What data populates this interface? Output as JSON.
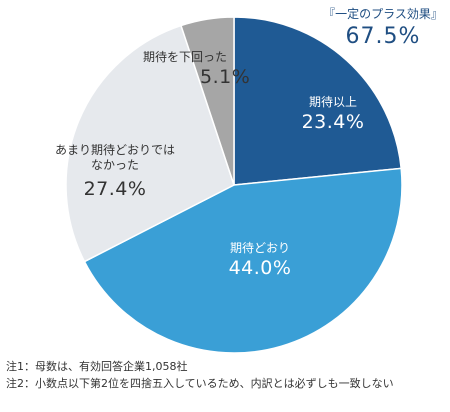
{
  "chart_data": {
    "type": "pie",
    "slices": [
      {
        "label": "期待以上",
        "value": 23.4,
        "value_label": "23.4%",
        "color": "#1f5a94"
      },
      {
        "label": "期待どおり",
        "value": 44.0,
        "value_label": "44.0%",
        "color": "#3a9fd6"
      },
      {
        "label": "あまり期待どおりではなかった",
        "value": 27.4,
        "value_label": "27.4%",
        "color": "#e6e9ed"
      },
      {
        "label": "期待を下回った",
        "value": 5.1,
        "value_label": "5.1%",
        "color": "#a6a6a6"
      }
    ],
    "annotations": {
      "summary_label": "『一定のプラス効果』",
      "summary_value": "67.5%"
    }
  },
  "labels": {
    "s0_cat": "期待以上",
    "s1_cat": "期待どおり",
    "s2_cat_line1": "あまり期待どおりでは",
    "s2_cat_line2": "なかった",
    "s3_cat": "期待を下回った"
  },
  "notes": [
    "注1：母数は、有効回答企業1,058社",
    "注2：小数点以下第2位を四捨五入しているため、内訳とは必ずしも一致しない"
  ],
  "colors": {
    "summary_text": "#1f4e82"
  }
}
